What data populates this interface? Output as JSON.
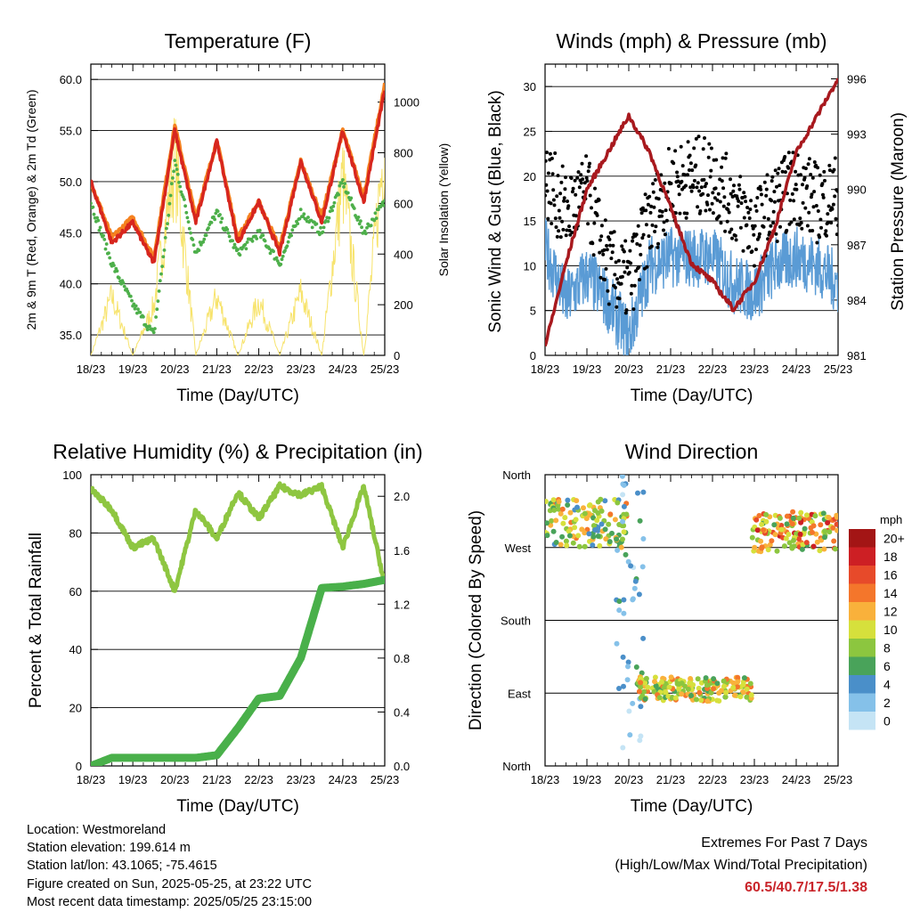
{
  "x_ticks": [
    "18/23",
    "19/23",
    "20/23",
    "21/23",
    "22/23",
    "23/23",
    "24/23",
    "25/23"
  ],
  "colors": {
    "red": "#d7261e",
    "orange": "#f58220",
    "green": "#4daf4a",
    "yellow": "#f7e36b",
    "blue": "#5a9bd5",
    "black": "#000000",
    "maroon": "#a8191e",
    "rh": "#8ec641",
    "precip": "#49b04a",
    "extreme": "#c9242a"
  },
  "info": {
    "location": "Location: Westmoreland",
    "elevation": "Station elevation: 199.614 m",
    "latlon": "Station lat/lon: 43.1065; -75.4615",
    "created": "Figure created on Sun, 2025-05-25, at 23:22 UTC",
    "recent": "Most recent data timestamp: 2025/05/25 23:15:00"
  },
  "extremes": {
    "title": "Extremes For Past 7 Days",
    "subtitle": "(High/Low/Max Wind/Total Precipitation)",
    "values": "60.5/40.7/17.5/1.38"
  },
  "chart_data": [
    {
      "type": "line",
      "title": "Temperature (F)",
      "xlabel": "Time (Day/UTC)",
      "ylabel": "2m & 9m T (Red, Orange) & 2m Td (Green)",
      "y2label": "Solar Insolation (Yellow)",
      "x": [
        0,
        0.5,
        1,
        1.5,
        2,
        2.5,
        3,
        3.5,
        4,
        4.5,
        5,
        5.5,
        6,
        6.5,
        7
      ],
      "ylim": [
        33,
        61.5
      ],
      "y_ticks": [
        "35.0",
        "40.0",
        "45.0",
        "50.0",
        "55.0",
        "60.0"
      ],
      "y2lim": [
        0,
        1150
      ],
      "y2_ticks": [
        "0",
        "200",
        "400",
        "600",
        "800",
        "1000"
      ],
      "grid": true,
      "series": [
        {
          "name": "2m T",
          "values": [
            50,
            44,
            46,
            42,
            55,
            46,
            54,
            44,
            48,
            43,
            52,
            46,
            55,
            48,
            59
          ]
        },
        {
          "name": "9m T",
          "values": [
            50,
            44.5,
            46.5,
            42.5,
            55.5,
            46.5,
            54,
            44.5,
            48,
            43.5,
            52,
            46.5,
            55,
            48.5,
            59.5
          ]
        },
        {
          "name": "2m Td",
          "values": [
            48,
            42,
            38,
            35,
            52,
            43,
            47,
            43,
            45,
            42,
            47,
            45,
            50,
            45,
            48
          ]
        },
        {
          "name": "Solar Insolation",
          "values": [
            0,
            300,
            0,
            250,
            1000,
            0,
            300,
            0,
            280,
            0,
            320,
            0,
            900,
            0,
            1100
          ]
        }
      ]
    },
    {
      "type": "line",
      "title": "Winds (mph) & Pressure (mb)",
      "xlabel": "Time (Day/UTC)",
      "ylabel": "Sonic Wind & Gust (Blue, Black)",
      "y2label": "Station Pressure (Maroon)",
      "x": [
        0,
        0.5,
        1,
        1.5,
        2,
        2.5,
        3,
        3.5,
        4,
        4.5,
        5,
        5.5,
        6,
        6.5,
        7
      ],
      "ylim": [
        0,
        32.5
      ],
      "y_ticks": [
        "0",
        "5",
        "10",
        "15",
        "20",
        "25",
        "30"
      ],
      "y2lim": [
        981,
        996.8
      ],
      "y2_ticks": [
        "981",
        "984",
        "987",
        "990",
        "993",
        "996"
      ],
      "grid": true,
      "series": [
        {
          "name": "Sonic Wind",
          "values": [
            12,
            6,
            9,
            6,
            2,
            10,
            11,
            11,
            11,
            8,
            7,
            10,
            11,
            10,
            8
          ]
        },
        {
          "name": "Gust",
          "values": [
            20,
            16,
            18,
            10,
            8,
            15,
            19,
            20,
            20,
            17,
            14,
            17,
            19,
            17,
            18
          ]
        },
        {
          "name": "Station Pressure",
          "values": [
            981.5,
            986,
            990,
            992,
            994,
            992,
            989,
            986,
            985,
            983.5,
            985,
            988,
            992,
            994,
            996
          ]
        }
      ]
    },
    {
      "type": "line",
      "title": "Relative Humidity (%) & Precipitation (in)",
      "xlabel": "Time (Day/UTC)",
      "ylabel": "Percent & Total Rainfall",
      "x": [
        0,
        0.5,
        1,
        1.5,
        2,
        2.5,
        3,
        3.5,
        4,
        4.5,
        5,
        5.5,
        6,
        6.5,
        7
      ],
      "ylim": [
        0,
        100
      ],
      "y_ticks": [
        "0",
        "20",
        "40",
        "60",
        "80",
        "100"
      ],
      "y2lim": [
        0,
        2.16
      ],
      "y2_ticks": [
        "0.0",
        "0.4",
        "0.8",
        "1.2",
        "1.6",
        "2.0"
      ],
      "grid": true,
      "series": [
        {
          "name": "Relative Humidity",
          "values": [
            95,
            88,
            75,
            78,
            60,
            88,
            78,
            94,
            85,
            96,
            93,
            96,
            75,
            96,
            62
          ]
        },
        {
          "name": "Total Precipitation",
          "values": [
            0,
            0.06,
            0.06,
            0.06,
            0.06,
            0.06,
            0.08,
            0.28,
            0.5,
            0.52,
            0.8,
            1.32,
            1.33,
            1.35,
            1.38
          ]
        }
      ]
    },
    {
      "type": "scatter",
      "title": "Wind Direction",
      "xlabel": "Time (Day/UTC)",
      "ylabel": "Direction (Colored By Speed)",
      "y_ticks": [
        "North",
        "East",
        "South",
        "West",
        "North"
      ],
      "ylim": [
        0,
        360
      ],
      "grid": true,
      "legend_title": "mph",
      "legend_labels": [
        "0",
        "2",
        "4",
        "6",
        "8",
        "10",
        "12",
        "14",
        "16",
        "18",
        "20+"
      ],
      "legend_colors": [
        "#c5e4f5",
        "#85c1e9",
        "#4a8fc9",
        "#49a35a",
        "#8cc63f",
        "#d6e03c",
        "#f9b13b",
        "#f4762b",
        "#e74a2a",
        "#cd1f24",
        "#a31515"
      ],
      "clusters": [
        {
          "x0": 0,
          "x1": 1.95,
          "dir_min": 270,
          "dir_max": 330,
          "speed_min": 4,
          "speed_max": 14
        },
        {
          "x0": 1.7,
          "x1": 2.35,
          "dir_min": 0,
          "dir_max": 360,
          "speed_min": 0,
          "speed_max": 6
        },
        {
          "x0": 2.2,
          "x1": 4.95,
          "dir_min": 80,
          "dir_max": 110,
          "speed_min": 6,
          "speed_max": 14
        },
        {
          "x0": 4.95,
          "x1": 7,
          "dir_min": 265,
          "dir_max": 315,
          "speed_min": 6,
          "speed_max": 18
        }
      ]
    }
  ]
}
